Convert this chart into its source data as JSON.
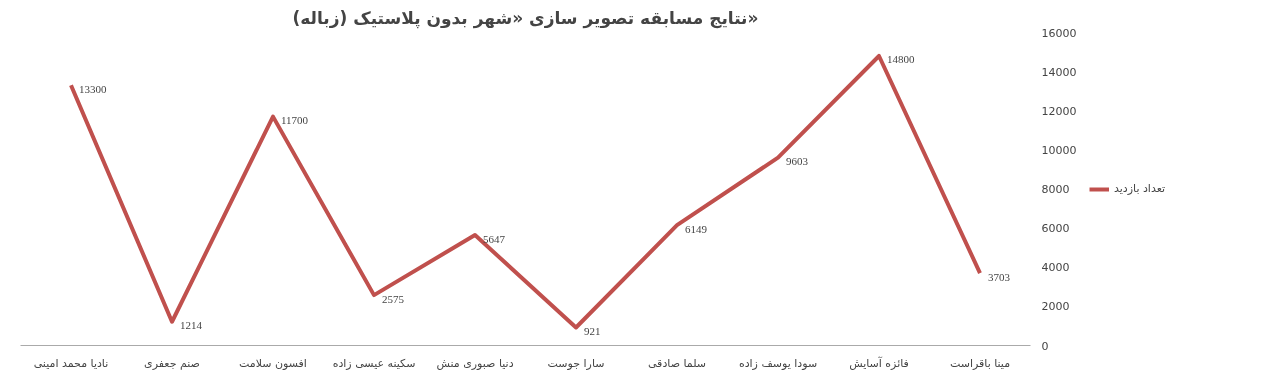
{
  "chart_data": {
    "type": "line",
    "title": "نتایج مسابقه تصویر سازی «شهر بدون پلاستیک (زباله)»",
    "categories": [
      "نادیا محمد امینی",
      "صنم جعفری",
      "افسون سلامت",
      "سکینه عیسی زاده",
      "دنیا صبوری منش",
      "سارا جوست",
      "سلما صادقی",
      "سودا یوسف زاده",
      "فائزه آسایش",
      "مینا باقراست"
    ],
    "series": [
      {
        "name": "تعداد بازدید",
        "color": "#c0504d",
        "values": [
          13300,
          1214,
          11700,
          2575,
          5647,
          921,
          6149,
          9603,
          14800,
          3703
        ]
      }
    ],
    "ylim": [
      0,
      16000
    ],
    "yticks": [
      0,
      2000,
      4000,
      6000,
      8000,
      10000,
      12000,
      14000,
      16000
    ],
    "grid": false,
    "legend": "right",
    "data_labels": true,
    "marker": "none",
    "line_style": "solid"
  }
}
